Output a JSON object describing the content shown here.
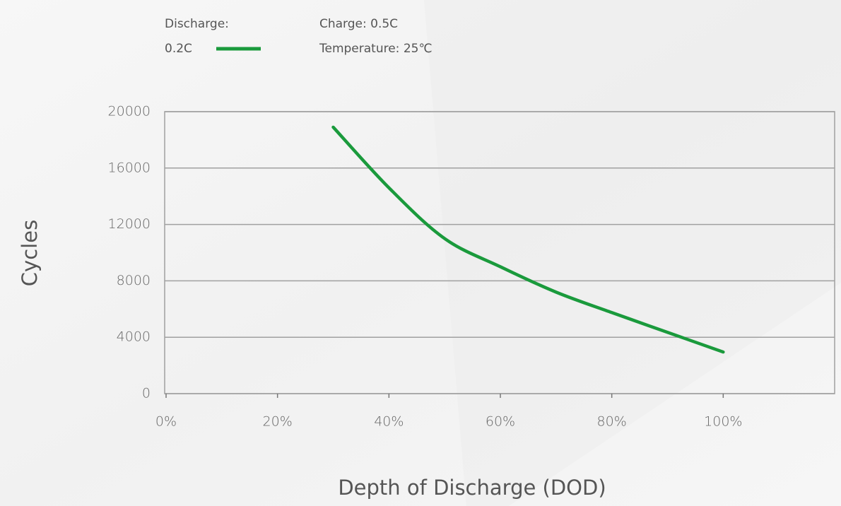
{
  "chart_data": {
    "type": "line",
    "legend_title": "Discharge:",
    "annotations": [
      "Charge: 0.5C",
      "Temperature: 25℃"
    ],
    "x_label": "Depth of Discharge (DOD)",
    "y_label": "Cycles",
    "x": [
      30,
      40,
      50,
      60,
      70,
      80,
      90,
      100
    ],
    "series": [
      {
        "name": "0.2C",
        "color": "#1a9a3c",
        "values": [
          18900,
          14600,
          11000,
          9000,
          7200,
          5750,
          4350,
          2950
        ]
      }
    ],
    "xlim": [
      0,
      120
    ],
    "xticks": [
      {
        "value": 0,
        "label": "0%"
      },
      {
        "value": 20,
        "label": "20%"
      },
      {
        "value": 40,
        "label": "40%"
      },
      {
        "value": 60,
        "label": "60%"
      },
      {
        "value": 80,
        "label": "80%"
      },
      {
        "value": 100,
        "label": "100%"
      }
    ],
    "ylim": [
      0,
      20000
    ],
    "yticks": [
      0,
      4000,
      8000,
      12000,
      16000,
      20000
    ],
    "grid": true
  }
}
